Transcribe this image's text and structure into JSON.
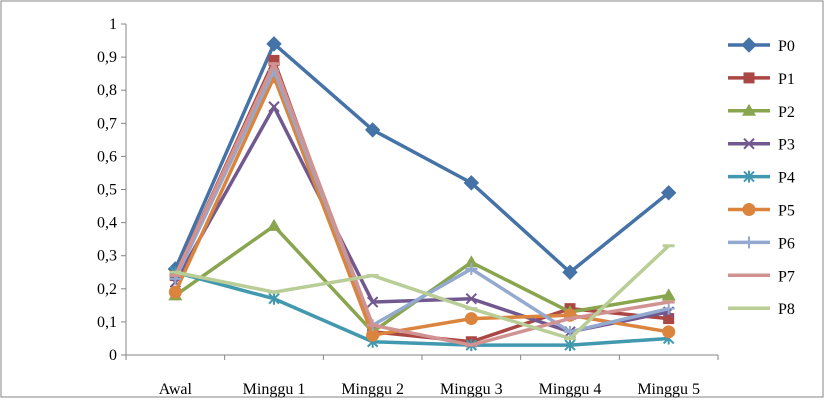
{
  "chart_data": {
    "type": "line",
    "title": "",
    "xlabel": "",
    "ylabel": "",
    "categories": [
      "Awal",
      "Minggu 1",
      "Minggu 2",
      "Minggu 3",
      "Minggu 4",
      "Minggu 5"
    ],
    "ylim": [
      0,
      1
    ],
    "y_ticks": [
      "0",
      "0,1",
      "0,2",
      "0,3",
      "0,4",
      "0,5",
      "0,6",
      "0,7",
      "0,8",
      "0,9",
      "1"
    ],
    "grid": false,
    "legend_position": "right",
    "series": [
      {
        "name": "P0",
        "color": "#4572A7",
        "marker": "diamond",
        "values": [
          0.26,
          0.94,
          0.68,
          0.52,
          0.25,
          0.49
        ]
      },
      {
        "name": "P1",
        "color": "#AA4643",
        "marker": "square",
        "values": [
          0.24,
          0.89,
          0.07,
          0.04,
          0.14,
          0.11
        ]
      },
      {
        "name": "P2",
        "color": "#89A54E",
        "marker": "triangle",
        "values": [
          0.18,
          0.39,
          0.07,
          0.28,
          0.13,
          0.18
        ]
      },
      {
        "name": "P3",
        "color": "#71588F",
        "marker": "x",
        "values": [
          0.22,
          0.75,
          0.16,
          0.17,
          0.07,
          0.13
        ]
      },
      {
        "name": "P4",
        "color": "#4198AF",
        "marker": "star",
        "values": [
          0.25,
          0.17,
          0.04,
          0.03,
          0.03,
          0.05
        ]
      },
      {
        "name": "P5",
        "color": "#DB843D",
        "marker": "circle",
        "values": [
          0.19,
          0.84,
          0.06,
          0.11,
          0.12,
          0.07
        ]
      },
      {
        "name": "P6",
        "color": "#93A9CF",
        "marker": "plus",
        "values": [
          0.23,
          0.86,
          0.09,
          0.26,
          0.07,
          0.14
        ]
      },
      {
        "name": "P7",
        "color": "#D19392",
        "marker": "dash",
        "values": [
          0.24,
          0.88,
          0.09,
          0.03,
          0.11,
          0.16
        ]
      },
      {
        "name": "P8",
        "color": "#B9CD96",
        "marker": "dash",
        "values": [
          0.25,
          0.19,
          0.24,
          0.14,
          0.05,
          0.33
        ]
      }
    ]
  }
}
